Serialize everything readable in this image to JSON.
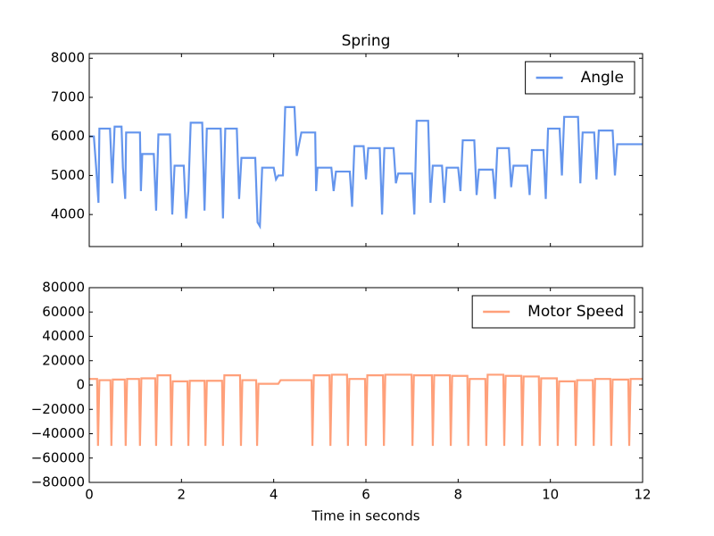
{
  "chart_data": [
    {
      "type": "line",
      "title": "Spring",
      "xlim": [
        0,
        12
      ],
      "xticks": [
        0,
        2,
        4,
        6,
        8,
        10,
        12
      ],
      "ylim": [
        3180,
        8120
      ],
      "yticks": [
        4000,
        5000,
        6000,
        7000,
        8000
      ],
      "legend": "upper right",
      "series": [
        {
          "name": "Angle",
          "color": "#6495ed",
          "x": [
            0,
            0.1,
            0.15,
            0.2,
            0.22,
            0.45,
            0.5,
            0.55,
            0.7,
            0.73,
            0.78,
            0.8,
            1.1,
            1.12,
            1.15,
            1.4,
            1.45,
            1.5,
            1.75,
            1.8,
            1.85,
            2.05,
            2.1,
            2.15,
            2.2,
            2.45,
            2.5,
            2.55,
            2.85,
            2.9,
            2.95,
            3.2,
            3.25,
            3.3,
            3.6,
            3.65,
            3.7,
            3.75,
            4.0,
            4.05,
            4.1,
            4.2,
            4.25,
            4.45,
            4.5,
            4.6,
            4.9,
            4.92,
            4.95,
            5.25,
            5.3,
            5.35,
            5.65,
            5.7,
            5.75,
            5.95,
            6.0,
            6.05,
            6.3,
            6.35,
            6.4,
            6.6,
            6.65,
            6.7,
            7.0,
            7.05,
            7.1,
            7.35,
            7.4,
            7.45,
            7.65,
            7.7,
            7.75,
            8.0,
            8.05,
            8.1,
            8.35,
            8.4,
            8.45,
            8.75,
            8.8,
            8.85,
            9.1,
            9.15,
            9.2,
            9.5,
            9.55,
            9.6,
            9.85,
            9.9,
            9.95,
            10.2,
            10.25,
            10.3,
            10.6,
            10.65,
            10.7,
            10.95,
            11.0,
            11.05,
            11.35,
            11.4,
            11.45,
            12
          ],
          "values": [
            6000,
            6000,
            5200,
            4300,
            6200,
            6200,
            4800,
            6250,
            6250,
            5200,
            4400,
            6100,
            6100,
            4600,
            5550,
            5550,
            4100,
            6050,
            6050,
            4000,
            5250,
            5250,
            3900,
            4600,
            6350,
            6350,
            4100,
            6200,
            6200,
            3900,
            6200,
            6200,
            4400,
            5450,
            5450,
            3800,
            3700,
            5200,
            5200,
            4900,
            5000,
            5000,
            6750,
            6750,
            5500,
            6100,
            6100,
            4600,
            5200,
            5200,
            4600,
            5100,
            5100,
            4200,
            5750,
            5750,
            4900,
            5700,
            5700,
            4000,
            5700,
            5700,
            4800,
            5050,
            5050,
            4000,
            6400,
            6400,
            4300,
            5250,
            5250,
            4300,
            5200,
            5200,
            4600,
            5900,
            5900,
            4500,
            5150,
            5150,
            4400,
            5700,
            5700,
            4700,
            5250,
            5250,
            4500,
            5650,
            5650,
            4400,
            6200,
            6200,
            5000,
            6500,
            6500,
            4800,
            6100,
            6100,
            4900,
            6150,
            6150,
            5000,
            5800,
            5800
          ]
        }
      ]
    },
    {
      "type": "line",
      "xlabel": "Time in seconds",
      "xlim": [
        0,
        12
      ],
      "xticks": [
        0,
        2,
        4,
        6,
        8,
        10,
        12
      ],
      "ylim": [
        -80000,
        80000
      ],
      "yticks": [
        {
          "value": -80000,
          "label": "−80000"
        },
        {
          "value": -60000,
          "label": "−60000"
        },
        {
          "value": -40000,
          "label": "−40000"
        },
        {
          "value": -20000,
          "label": "−20000"
        },
        0,
        20000,
        40000,
        60000,
        80000
      ],
      "legend": "upper right",
      "series": [
        {
          "name": "Motor Speed",
          "color": "#ffa07a",
          "x": [
            0,
            0.17,
            0.19,
            0.22,
            0.46,
            0.48,
            0.51,
            0.77,
            0.79,
            0.82,
            1.08,
            1.1,
            1.13,
            1.43,
            1.45,
            1.48,
            1.76,
            1.78,
            1.81,
            2.13,
            2.15,
            2.18,
            2.5,
            2.52,
            2.55,
            2.88,
            2.9,
            2.93,
            3.27,
            3.29,
            3.32,
            3.62,
            3.64,
            3.67,
            4.1,
            4.15,
            4.82,
            4.84,
            4.87,
            5.21,
            5.23,
            5.26,
            5.59,
            5.61,
            5.64,
            5.98,
            6.0,
            6.03,
            6.37,
            6.39,
            6.42,
            6.99,
            7.01,
            7.04,
            7.43,
            7.45,
            7.48,
            7.82,
            7.84,
            7.87,
            8.2,
            8.22,
            8.25,
            8.59,
            8.61,
            8.64,
            8.98,
            9.0,
            9.03,
            9.37,
            9.39,
            9.42,
            9.75,
            9.77,
            9.8,
            10.14,
            10.16,
            10.19,
            10.53,
            10.55,
            10.58,
            10.92,
            10.94,
            10.97,
            11.3,
            11.32,
            11.35,
            11.69,
            11.71,
            11.74,
            12
          ],
          "values": [
            5000,
            5000,
            -50000,
            4000,
            4000,
            -50000,
            4500,
            4500,
            -50000,
            5000,
            5000,
            -50000,
            5500,
            5500,
            -50000,
            8000,
            8000,
            -50000,
            3000,
            3000,
            -50000,
            3500,
            3500,
            -50000,
            3500,
            3500,
            -50000,
            8000,
            8000,
            -50000,
            4000,
            4000,
            -50000,
            1000,
            1000,
            4000,
            4000,
            -50000,
            8000,
            8000,
            -50000,
            8500,
            8500,
            -50000,
            5000,
            5000,
            -50000,
            8000,
            8000,
            -50000,
            8500,
            8500,
            -50000,
            8000,
            8000,
            -50000,
            8000,
            8000,
            -50000,
            7500,
            7500,
            -50000,
            5000,
            5000,
            -50000,
            8500,
            8500,
            -50000,
            7500,
            7500,
            -50000,
            7000,
            7000,
            -50000,
            5500,
            5500,
            -50000,
            3000,
            3000,
            -50000,
            4000,
            4000,
            -50000,
            5000,
            5000,
            -50000,
            4500,
            4500,
            -50000,
            5000,
            5000
          ]
        }
      ]
    }
  ]
}
